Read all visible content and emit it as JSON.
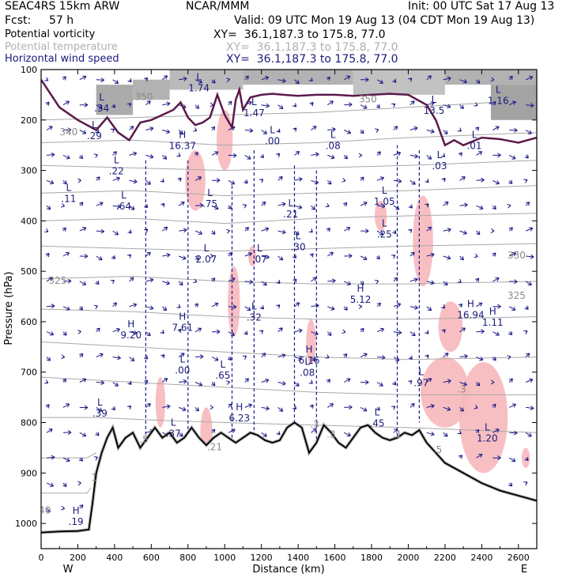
{
  "header": {
    "model": "SEAC4RS 15km ARW",
    "center": "NCAR/MMM",
    "init": "Init: 00 UTC Sat 17 Aug 13",
    "fcst_label": "Fcst:",
    "fcst_value": "57 h",
    "valid": "Valid: 09 UTC Mon 19 Aug 13 (04 CDT Mon 19 Aug 13)"
  },
  "fields": [
    {
      "name": "Potential vorticity",
      "xy": "XY=  36.1,187.3 to 175.8, 77.0",
      "color": "#000000"
    },
    {
      "name": "Potential temperature",
      "xy": "XY=  36.1,187.3 to 175.8, 77.0",
      "color": "#b0b0b0"
    },
    {
      "name": "Horizontal wind speed",
      "xy": "XY=  36.1,187.3 to 175.8, 77.0",
      "color": "#1a1a7a"
    }
  ],
  "colors": {
    "pv_shading": "#6a6a6a",
    "terrain_line": "#000000",
    "tropopause": "#5a1a4a",
    "theta": "#a8a8a8",
    "wind": "#1a1a8a",
    "pink": "#f7b8bd"
  },
  "chart_data": {
    "type": "cross-section",
    "xlabel": "Distance (km)",
    "ylabel": "Pressure (hPa)",
    "xlim": [
      0,
      2700
    ],
    "ylim": [
      1050,
      100
    ],
    "x_ticks": [
      "0",
      "200",
      "400",
      "600",
      "800",
      "1000",
      "1200",
      "1400",
      "1600",
      "1800",
      "2000",
      "2200",
      "2400",
      "2600"
    ],
    "x_tick_values": [
      0,
      200,
      400,
      600,
      800,
      1000,
      1200,
      1400,
      1600,
      1800,
      2000,
      2200,
      2400,
      2600
    ],
    "y_ticks": [
      "100",
      "200",
      "300",
      "400",
      "500",
      "600",
      "700",
      "800",
      "900",
      "1000"
    ],
    "y_tick_values": [
      100,
      200,
      300,
      400,
      500,
      600,
      700,
      800,
      900,
      1000
    ],
    "end_labels": {
      "left": "W",
      "right": "E"
    },
    "terrain": [
      [
        0,
        1018
      ],
      [
        100,
        1016
      ],
      [
        200,
        1015
      ],
      [
        260,
        1012
      ],
      [
        280,
        960
      ],
      [
        300,
        900
      ],
      [
        330,
        860
      ],
      [
        360,
        830
      ],
      [
        390,
        810
      ],
      [
        420,
        850
      ],
      [
        460,
        830
      ],
      [
        500,
        820
      ],
      [
        540,
        850
      ],
      [
        580,
        830
      ],
      [
        620,
        810
      ],
      [
        660,
        830
      ],
      [
        700,
        820
      ],
      [
        740,
        840
      ],
      [
        780,
        830
      ],
      [
        820,
        810
      ],
      [
        860,
        830
      ],
      [
        900,
        845
      ],
      [
        940,
        830
      ],
      [
        980,
        820
      ],
      [
        1020,
        830
      ],
      [
        1060,
        840
      ],
      [
        1100,
        830
      ],
      [
        1140,
        820
      ],
      [
        1180,
        825
      ],
      [
        1220,
        835
      ],
      [
        1260,
        840
      ],
      [
        1300,
        835
      ],
      [
        1340,
        810
      ],
      [
        1380,
        800
      ],
      [
        1420,
        810
      ],
      [
        1460,
        860
      ],
      [
        1500,
        840
      ],
      [
        1540,
        805
      ],
      [
        1580,
        820
      ],
      [
        1620,
        840
      ],
      [
        1660,
        850
      ],
      [
        1700,
        830
      ],
      [
        1740,
        810
      ],
      [
        1780,
        805
      ],
      [
        1820,
        820
      ],
      [
        1860,
        830
      ],
      [
        1900,
        835
      ],
      [
        1940,
        830
      ],
      [
        1980,
        820
      ],
      [
        2020,
        825
      ],
      [
        2060,
        815
      ],
      [
        2100,
        840
      ],
      [
        2150,
        860
      ],
      [
        2200,
        880
      ],
      [
        2300,
        900
      ],
      [
        2400,
        920
      ],
      [
        2500,
        935
      ],
      [
        2600,
        945
      ],
      [
        2700,
        955
      ]
    ],
    "tropopause": [
      [
        0,
        120
      ],
      [
        100,
        175
      ],
      [
        200,
        200
      ],
      [
        300,
        220
      ],
      [
        360,
        195
      ],
      [
        420,
        225
      ],
      [
        480,
        240
      ],
      [
        540,
        205
      ],
      [
        600,
        200
      ],
      [
        660,
        190
      ],
      [
        720,
        180
      ],
      [
        760,
        165
      ],
      [
        800,
        195
      ],
      [
        840,
        210
      ],
      [
        880,
        205
      ],
      [
        920,
        195
      ],
      [
        960,
        150
      ],
      [
        1000,
        190
      ],
      [
        1040,
        215
      ],
      [
        1060,
        160
      ],
      [
        1080,
        140
      ],
      [
        1100,
        180
      ],
      [
        1140,
        155
      ],
      [
        1200,
        150
      ],
      [
        1260,
        148
      ],
      [
        1320,
        150
      ],
      [
        1400,
        152
      ],
      [
        1500,
        150
      ],
      [
        1600,
        150
      ],
      [
        1700,
        152
      ],
      [
        1800,
        150
      ],
      [
        1900,
        148
      ],
      [
        2000,
        150
      ],
      [
        2100,
        170
      ],
      [
        2150,
        200
      ],
      [
        2200,
        250
      ],
      [
        2250,
        240
      ],
      [
        2300,
        250
      ],
      [
        2400,
        235
      ],
      [
        2500,
        238
      ],
      [
        2600,
        245
      ],
      [
        2700,
        235
      ]
    ],
    "theta_isentropes": [
      {
        "label": "350",
        "p": [
          [
            0,
            200
          ],
          [
            500,
            195
          ],
          [
            1000,
            190
          ],
          [
            1500,
            185
          ],
          [
            2000,
            175
          ],
          [
            2700,
            160
          ]
        ]
      },
      {
        "label": "340",
        "p": [
          [
            0,
            245
          ],
          [
            500,
            240
          ],
          [
            1000,
            250
          ],
          [
            1500,
            245
          ],
          [
            2000,
            235
          ],
          [
            2700,
            225
          ]
        ]
      },
      {
        "label": "",
        "p": [
          [
            0,
            290
          ],
          [
            500,
            295
          ],
          [
            1000,
            300
          ],
          [
            1500,
            295
          ],
          [
            2000,
            290
          ],
          [
            2700,
            280
          ]
        ]
      },
      {
        "label": "",
        "p": [
          [
            0,
            345
          ],
          [
            500,
            340
          ],
          [
            1000,
            350
          ],
          [
            1500,
            345
          ],
          [
            2000,
            340
          ],
          [
            2700,
            330
          ]
        ]
      },
      {
        "label": "",
        "p": [
          [
            0,
            400
          ],
          [
            500,
            395
          ],
          [
            1000,
            405
          ],
          [
            1500,
            395
          ],
          [
            2000,
            390
          ],
          [
            2700,
            385
          ]
        ]
      },
      {
        "label": "330",
        "p": [
          [
            0,
            450
          ],
          [
            500,
            455
          ],
          [
            1000,
            460
          ],
          [
            1500,
            455
          ],
          [
            2000,
            450
          ],
          [
            2700,
            445
          ]
        ]
      },
      {
        "label": "325",
        "p": [
          [
            0,
            515
          ],
          [
            500,
            510
          ],
          [
            1000,
            520
          ],
          [
            1500,
            525
          ],
          [
            2000,
            525
          ],
          [
            2700,
            520
          ]
        ]
      },
      {
        "label": "",
        "p": [
          [
            0,
            575
          ],
          [
            500,
            580
          ],
          [
            1000,
            590
          ],
          [
            1500,
            595
          ],
          [
            2000,
            595
          ],
          [
            2700,
            590
          ]
        ]
      },
      {
        "label": "",
        "p": [
          [
            0,
            640
          ],
          [
            500,
            650
          ],
          [
            1000,
            660
          ],
          [
            1500,
            670
          ],
          [
            2000,
            675
          ],
          [
            2700,
            670
          ]
        ]
      },
      {
        "label": "",
        "p": [
          [
            0,
            710
          ],
          [
            500,
            720
          ],
          [
            1000,
            730
          ],
          [
            1500,
            740
          ],
          [
            2000,
            745
          ],
          [
            2700,
            745
          ]
        ]
      },
      {
        "label": "",
        "p": [
          [
            0,
            790
          ],
          [
            300,
            790
          ],
          [
            600,
            795
          ],
          [
            1000,
            800
          ],
          [
            1500,
            805
          ],
          [
            2000,
            810
          ],
          [
            2700,
            820
          ]
        ]
      },
      {
        "label": "",
        "p": [
          [
            0,
            870
          ],
          [
            250,
            870
          ],
          [
            300,
            860
          ]
        ]
      },
      {
        "label": "",
        "p": [
          [
            0,
            940
          ],
          [
            250,
            940
          ],
          [
            270,
            930
          ]
        ]
      }
    ],
    "pv_shading": [
      {
        "x0": 300,
        "x1": 500,
        "p0": 130,
        "p1": 190,
        "level": 0.55
      },
      {
        "x0": 500,
        "x1": 700,
        "p0": 120,
        "p1": 160,
        "level": 0.5
      },
      {
        "x0": 700,
        "x1": 1100,
        "p0": 100,
        "p1": 140,
        "level": 0.45
      },
      {
        "x0": 1100,
        "x1": 1700,
        "p0": 100,
        "p1": 130,
        "level": 0.5
      },
      {
        "x0": 1700,
        "x1": 2200,
        "p0": 100,
        "p1": 150,
        "level": 0.4
      },
      {
        "x0": 2200,
        "x1": 2700,
        "p0": 100,
        "p1": 130,
        "level": 0.5
      },
      {
        "x0": 2450,
        "x1": 2700,
        "p0": 130,
        "p1": 200,
        "level": 0.6
      }
    ],
    "pink_regions": [
      {
        "x": 840,
        "p": 320,
        "rx": 25,
        "ry": 60
      },
      {
        "x": 1000,
        "p": 240,
        "rx": 20,
        "ry": 60
      },
      {
        "x": 650,
        "p": 760,
        "rx": 12,
        "ry": 50
      },
      {
        "x": 1050,
        "p": 560,
        "rx": 15,
        "ry": 70
      },
      {
        "x": 1150,
        "p": 470,
        "rx": 10,
        "ry": 20
      },
      {
        "x": 1470,
        "p": 640,
        "rx": 12,
        "ry": 45
      },
      {
        "x": 1850,
        "p": 390,
        "rx": 15,
        "ry": 30
      },
      {
        "x": 2080,
        "p": 440,
        "rx": 25,
        "ry": 90
      },
      {
        "x": 2200,
        "p": 740,
        "rx": 60,
        "ry": 70
      },
      {
        "x": 2230,
        "p": 610,
        "rx": 30,
        "ry": 50
      },
      {
        "x": 2410,
        "p": 790,
        "rx": 60,
        "ry": 110
      },
      {
        "x": 900,
        "p": 820,
        "rx": 15,
        "ry": 50
      },
      {
        "x": 2640,
        "p": 870,
        "rx": 10,
        "ry": 20
      }
    ],
    "hl_labels": [
      {
        "sym": "L",
        "val": ".34",
        "x": 330,
        "p": 175
      },
      {
        "sym": "L",
        "val": ".29",
        "x": 290,
        "p": 230
      },
      {
        "sym": "L",
        "val": ".22",
        "x": 410,
        "p": 300
      },
      {
        "sym": "L",
        "val": ".11",
        "x": 150,
        "p": 355
      },
      {
        "sym": "L",
        "val": ".64",
        "x": 450,
        "p": 370
      },
      {
        "sym": "H",
        "val": "16.37",
        "x": 770,
        "p": 250
      },
      {
        "sym": "L",
        "val": "1.74",
        "x": 860,
        "p": 135
      },
      {
        "sym": "L",
        "val": "1.47",
        "x": 1160,
        "p": 185
      },
      {
        "sym": "L",
        "val": ".00",
        "x": 1260,
        "p": 240
      },
      {
        "sym": "L",
        "val": ".08",
        "x": 1590,
        "p": 250
      },
      {
        "sym": "L",
        "val": "13.5",
        "x": 2140,
        "p": 180
      },
      {
        "sym": "L",
        "val": "1.16",
        "x": 2490,
        "p": 160
      },
      {
        "sym": "L",
        "val": ".01",
        "x": 2360,
        "p": 250
      },
      {
        "sym": "L",
        "val": ".03",
        "x": 2170,
        "p": 290
      },
      {
        "sym": "L",
        "val": ".75",
        "x": 920,
        "p": 365
      },
      {
        "sym": "L",
        "val": "2.07",
        "x": 900,
        "p": 475
      },
      {
        "sym": "L",
        "val": ".07",
        "x": 1190,
        "p": 475
      },
      {
        "sym": "L",
        "val": ".21",
        "x": 1360,
        "p": 385
      },
      {
        "sym": "L",
        "val": ".30",
        "x": 1400,
        "p": 450
      },
      {
        "sym": "L",
        "val": "1.05",
        "x": 1870,
        "p": 360
      },
      {
        "sym": "L",
        "val": ".25",
        "x": 1870,
        "p": 425
      },
      {
        "sym": "H",
        "val": "5.12",
        "x": 1740,
        "p": 555
      },
      {
        "sym": "H",
        "val": "9.20",
        "x": 490,
        "p": 625
      },
      {
        "sym": "H",
        "val": "7.61",
        "x": 770,
        "p": 610
      },
      {
        "sym": "L",
        "val": ".32",
        "x": 1160,
        "p": 590
      },
      {
        "sym": "H",
        "val": "16.94",
        "x": 2340,
        "p": 585
      },
      {
        "sym": "H",
        "val": "1.11",
        "x": 2460,
        "p": 600
      },
      {
        "sym": "L",
        "val": ".00",
        "x": 770,
        "p": 695
      },
      {
        "sym": "L",
        "val": ".65",
        "x": 990,
        "p": 705
      },
      {
        "sym": "H",
        "val": "6.16",
        "x": 1460,
        "p": 675
      },
      {
        "sym": "L",
        "val": ".08",
        "x": 1450,
        "p": 700
      },
      {
        "sym": "L",
        "val": ".97",
        "x": 2070,
        "p": 720
      },
      {
        "sym": "L",
        "val": ".39",
        "x": 320,
        "p": 780
      },
      {
        "sym": "H",
        "val": "6.23",
        "x": 1080,
        "p": 790
      },
      {
        "sym": "L",
        "val": ".37",
        "x": 720,
        "p": 820
      },
      {
        "sym": "L",
        "val": ".45",
        "x": 1830,
        "p": 800
      },
      {
        "sym": "L",
        "val": "1.20",
        "x": 2430,
        "p": 830
      },
      {
        "sym": "H",
        "val": ".19",
        "x": 190,
        "p": 995
      }
    ],
    "minor_labels": [
      {
        "text": "350",
        "x": 560,
        "p": 160
      },
      {
        "text": "350",
        "x": 1780,
        "p": 165
      },
      {
        "text": "340",
        "x": 150,
        "p": 230
      },
      {
        "text": "330",
        "x": 2590,
        "p": 475
      },
      {
        "text": "325",
        "x": 90,
        "p": 525
      },
      {
        "text": "325",
        "x": 2590,
        "p": 555
      },
      {
        "text": ".5",
        "x": 560,
        "p": 840
      },
      {
        "text": ".21",
        "x": 945,
        "p": 855
      },
      {
        "text": ".3",
        "x": 1490,
        "p": 810
      },
      {
        "text": ".3",
        "x": 1580,
        "p": 830
      },
      {
        "text": ".1",
        "x": 1940,
        "p": 830
      },
      {
        "text": ".3",
        "x": 2290,
        "p": 740
      },
      {
        "text": ".5",
        "x": 2160,
        "p": 860
      },
      {
        "text": "1",
        "x": 290,
        "p": 915
      },
      {
        "text": "1",
        "x": 2275,
        "p": 100
      },
      {
        "text": "40",
        "x": 20,
        "p": 980
      }
    ]
  }
}
